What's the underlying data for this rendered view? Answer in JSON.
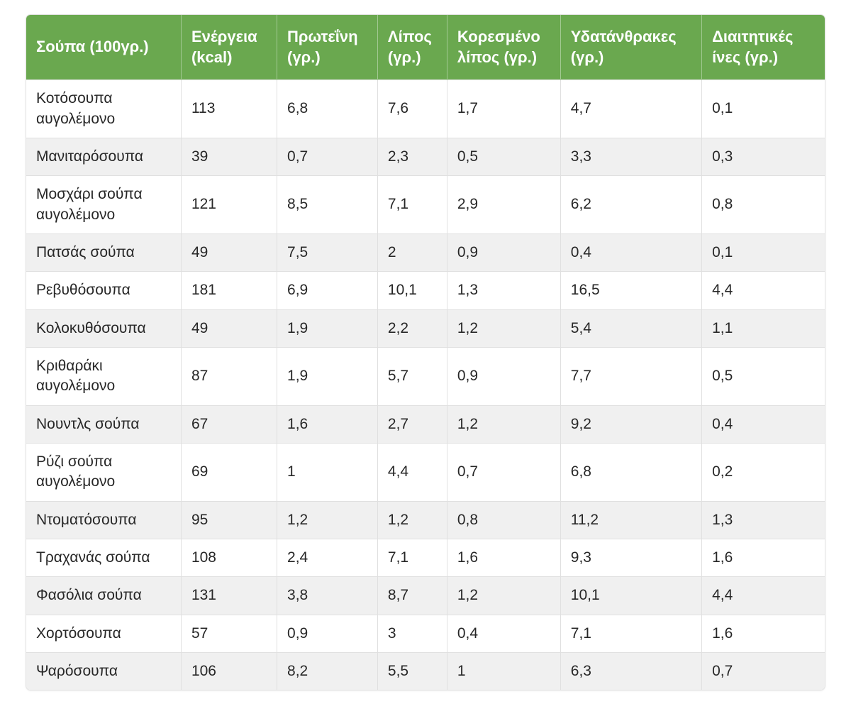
{
  "colors": {
    "header_bg": "#6aa84f",
    "header_text": "#ffffff",
    "row_alt_bg": "#f0f0f0",
    "border": "#e0e0e0"
  },
  "chart_data": {
    "type": "table",
    "title": "",
    "columns": [
      "Σούπα (100γρ.)",
      "Ενέργεια (kcal)",
      "Πρωτεΐνη (γρ.)",
      "Λίπος (γρ.)",
      "Κορεσμένο λίπος (γρ.)",
      "Υδατάνθρακες (γρ.)",
      "Διαιτητικές ίνες (γρ.)"
    ],
    "rows": [
      [
        "Κοτόσουπα αυγολέμονο",
        "113",
        "6,8",
        "7,6",
        "1,7",
        "4,7",
        "0,1"
      ],
      [
        "Μανιταρόσουπα",
        "39",
        "0,7",
        "2,3",
        "0,5",
        "3,3",
        "0,3"
      ],
      [
        "Μοσχάρι σούπα αυγολέμονο",
        "121",
        "8,5",
        "7,1",
        "2,9",
        "6,2",
        "0,8"
      ],
      [
        "Πατσάς σούπα",
        "49",
        "7,5",
        "2",
        "0,9",
        "0,4",
        "0,1"
      ],
      [
        "Ρεβυθόσουπα",
        "181",
        "6,9",
        "10,1",
        "1,3",
        "16,5",
        "4,4"
      ],
      [
        "Κολοκυθόσουπα",
        "49",
        "1,9",
        "2,2",
        "1,2",
        "5,4",
        "1,1"
      ],
      [
        "Κριθαράκι αυγολέμονο",
        "87",
        "1,9",
        "5,7",
        "0,9",
        "7,7",
        "0,5"
      ],
      [
        "Νουντλς σούπα",
        "67",
        "1,6",
        "2,7",
        "1,2",
        "9,2",
        "0,4"
      ],
      [
        "Ρύζι σούπα αυγολέμονο",
        "69",
        "1",
        "4,4",
        "0,7",
        "6,8",
        "0,2"
      ],
      [
        "Ντοματόσουπα",
        "95",
        "1,2",
        "1,2",
        "0,8",
        "11,2",
        "1,3"
      ],
      [
        "Τραχανάς σούπα",
        "108",
        "2,4",
        "7,1",
        "1,6",
        "9,3",
        "1,6"
      ],
      [
        "Φασόλια σούπα",
        "131",
        "3,8",
        "8,7",
        "1,2",
        "10,1",
        "4,4"
      ],
      [
        "Χορτόσουπα",
        "57",
        "0,9",
        "3",
        "0,4",
        "7,1",
        "1,6"
      ],
      [
        "Ψαρόσουπα",
        "106",
        "8,2",
        "5,5",
        "1",
        "6,3",
        "0,7"
      ]
    ]
  }
}
